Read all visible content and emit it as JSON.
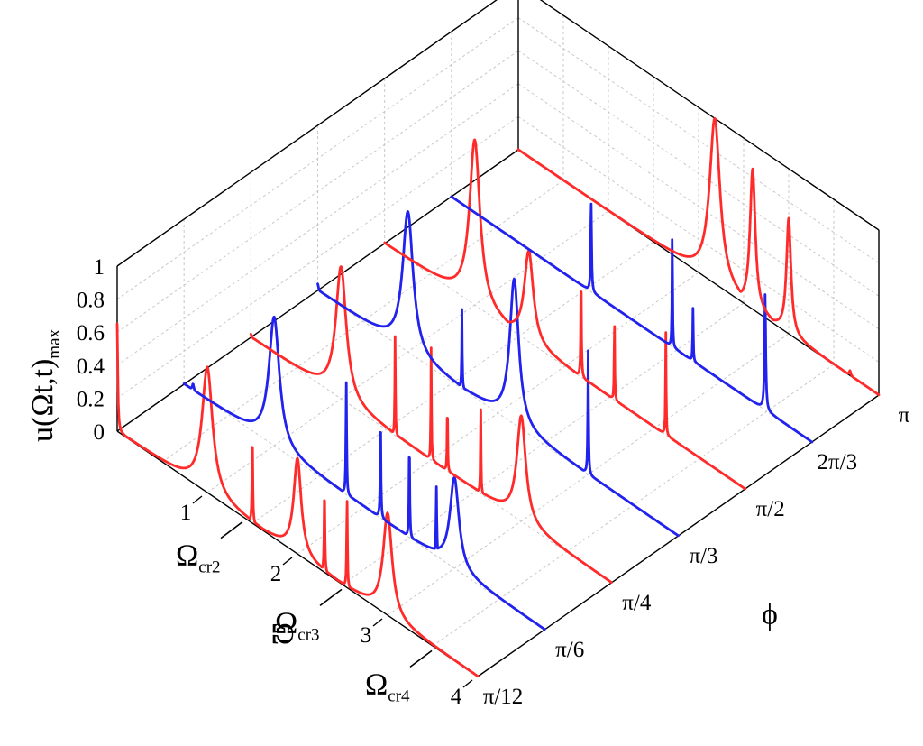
{
  "chart_data": {
    "type": "line",
    "projection": "3d-waterfall",
    "zlabel_main": "u(Ωt,t)",
    "zlabel_sub": "max",
    "xlabel": "Ω",
    "ylabel": "ϕ",
    "x_ticks": [
      "1",
      "2",
      "3",
      "4"
    ],
    "y_ticks": [
      "π/12",
      "π/6",
      "π/4",
      "π/3",
      "π/2",
      "2π/3",
      "π"
    ],
    "z_ticks": [
      "0",
      "0.2",
      "0.4",
      "0.6",
      "0.8",
      "1"
    ],
    "xlim": [
      0,
      4
    ],
    "zlim": [
      0,
      1
    ],
    "annotations": [
      {
        "main": "Ω",
        "sub": "cr2",
        "x": 1.45
      },
      {
        "main": "Ω",
        "sub": "cr3",
        "x": 2.55
      },
      {
        "main": "Ω",
        "sub": "cr4",
        "x": 3.55
      }
    ],
    "series": [
      {
        "phi": "π",
        "color": "#ff2a2a",
        "peaks": [
          {
            "x": 2.18,
            "z": 1.0,
            "w": 0.07
          },
          {
            "x": 2.6,
            "z": 0.85,
            "w": 0.035
          },
          {
            "x": 3.0,
            "z": 0.7,
            "w": 0.03
          },
          {
            "x": 3.68,
            "z": 0.03,
            "w": 0.01
          }
        ]
      },
      {
        "phi": "2π/3",
        "color": "#2222ee",
        "peaks": [
          {
            "x": 1.55,
            "z": 0.55,
            "w": 0.006
          },
          {
            "x": 2.45,
            "z": 0.7,
            "w": 0.004
          },
          {
            "x": 2.68,
            "z": 0.32,
            "w": 0.004
          },
          {
            "x": 3.48,
            "z": 0.7,
            "w": 0.008
          }
        ]
      },
      {
        "phi": "π/2",
        "color": "#ff2a2a",
        "peaks": [
          {
            "x": 1.0,
            "z": 1.0,
            "w": 0.07
          },
          {
            "x": 1.6,
            "z": 0.55,
            "w": 0.06
          },
          {
            "x": 2.18,
            "z": 0.62,
            "w": 0.005
          },
          {
            "x": 2.55,
            "z": 0.48,
            "w": 0.004
          },
          {
            "x": 3.12,
            "z": 0.62,
            "w": 0.004
          }
        ]
      },
      {
        "phi": "π/3",
        "color": "#2222ee",
        "peaks": [
          {
            "x": 0.0,
            "z": 0.04,
            "w": 0.01
          },
          {
            "x": 1.0,
            "z": 0.85,
            "w": 0.07
          },
          {
            "x": 1.6,
            "z": 0.48,
            "w": 0.004
          },
          {
            "x": 2.18,
            "z": 0.88,
            "w": 0.06
          },
          {
            "x": 3.0,
            "z": 0.75,
            "w": 0.005
          }
        ]
      },
      {
        "phi": "π/4",
        "color": "#ff2a2a",
        "peaks": [
          {
            "x": 0.0,
            "z": 0.02,
            "w": 0.01
          },
          {
            "x": 1.0,
            "z": 0.8,
            "w": 0.07
          },
          {
            "x": 1.6,
            "z": 0.6,
            "w": 0.004
          },
          {
            "x": 2.0,
            "z": 0.68,
            "w": 0.004
          },
          {
            "x": 2.18,
            "z": 0.42,
            "w": 0.004
          },
          {
            "x": 2.55,
            "z": 0.55,
            "w": 0.004
          },
          {
            "x": 3.0,
            "z": 0.64,
            "w": 0.06
          }
        ]
      },
      {
        "phi": "π/6",
        "color": "#2222ee",
        "peaks": [
          {
            "x": 0.1,
            "z": 0.04,
            "w": 0.01
          },
          {
            "x": 1.0,
            "z": 0.78,
            "w": 0.07
          },
          {
            "x": 1.8,
            "z": 0.68,
            "w": 0.005
          },
          {
            "x": 2.18,
            "z": 0.62,
            "w": 0.005
          },
          {
            "x": 2.5,
            "z": 0.58,
            "w": 0.005
          },
          {
            "x": 2.8,
            "z": 0.42,
            "w": 0.005
          },
          {
            "x": 3.0,
            "z": 0.55,
            "w": 0.06
          }
        ]
      },
      {
        "phi": "π/12",
        "color": "#ff2a2a",
        "peaks": [
          {
            "x": 0.0,
            "z": 0.65,
            "w": 0.008
          },
          {
            "x": 1.0,
            "z": 0.76,
            "w": 0.07
          },
          {
            "x": 1.5,
            "z": 0.55,
            "w": 0.005
          },
          {
            "x": 2.0,
            "z": 0.58,
            "w": 0.05
          },
          {
            "x": 2.3,
            "z": 0.52,
            "w": 0.005
          },
          {
            "x": 2.55,
            "z": 0.55,
            "w": 0.005
          },
          {
            "x": 3.0,
            "z": 0.62,
            "w": 0.06
          }
        ]
      }
    ]
  }
}
